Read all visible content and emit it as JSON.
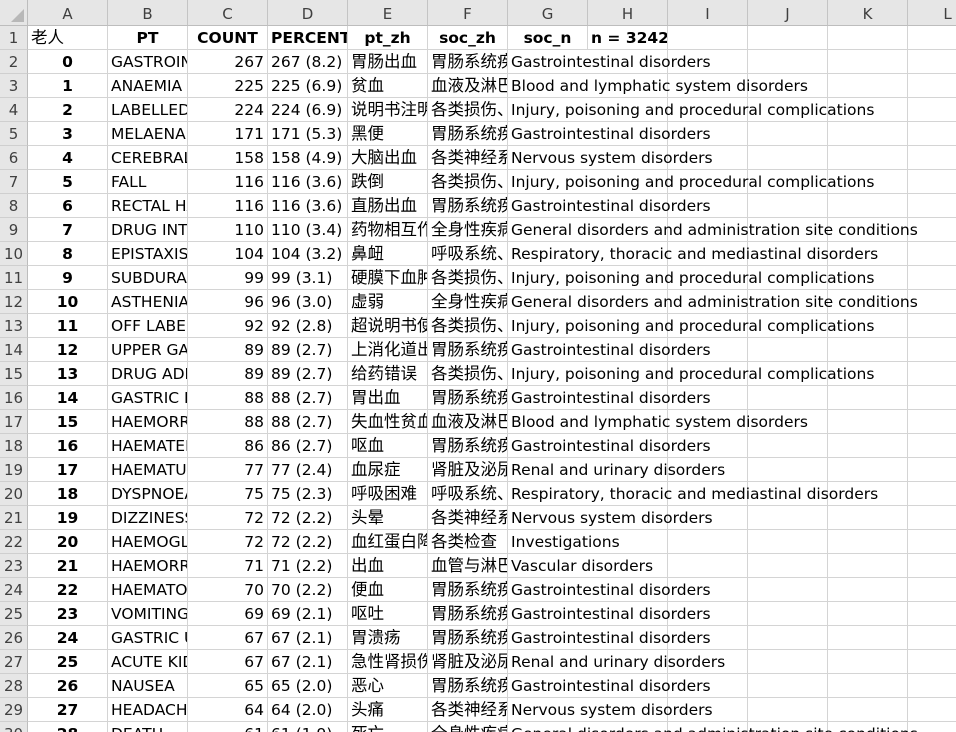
{
  "columns": [
    "A",
    "B",
    "C",
    "D",
    "E",
    "F",
    "G",
    "H",
    "I",
    "J",
    "K",
    "L"
  ],
  "header_row": {
    "row_number": "1",
    "A": "老人",
    "B": "PT",
    "C": "COUNT",
    "D": "PERCENTAGE",
    "E": "pt_zh",
    "F": "soc_zh",
    "G": "soc_n",
    "H": "n = 3242"
  },
  "rows": [
    {
      "n": "2",
      "a": "0",
      "b": "GASTROINTESTINAL HAEMORRHAGE",
      "c": "267",
      "d": "267 (8.2)",
      "e": "胃肠出血",
      "f": "胃肠系统疾病",
      "g": "Gastrointestinal disorders"
    },
    {
      "n": "3",
      "a": "1",
      "b": "ANAEMIA",
      "c": "225",
      "d": "225 (6.9)",
      "e": "贫血",
      "f": "血液及淋巴系统疾病",
      "g": "Blood and lymphatic system disorders"
    },
    {
      "n": "4",
      "a": "2",
      "b": "LABELLED DRUG-DRUG INTERACTION MEDICATION ERROR",
      "c": "224",
      "d": "224 (6.9)",
      "e": "说明书注明的药物相互作用用药错误",
      "f": "各类损伤、中毒及操作并发症",
      "g": "Injury, poisoning and procedural complications"
    },
    {
      "n": "5",
      "a": "3",
      "b": "MELAENA",
      "c": "171",
      "d": "171 (5.3)",
      "e": "黑便",
      "f": "胃肠系统疾病",
      "g": "Gastrointestinal disorders"
    },
    {
      "n": "6",
      "a": "4",
      "b": "CEREBRAL HAEMORRHAGE",
      "c": "158",
      "d": "158 (4.9)",
      "e": "大脑出血",
      "f": "各类神经系统疾病",
      "g": "Nervous system disorders"
    },
    {
      "n": "7",
      "a": "5",
      "b": "FALL",
      "c": "116",
      "d": "116 (3.6)",
      "e": "跌倒",
      "f": "各类损伤、中毒及操作并发症",
      "g": "Injury, poisoning and procedural complications"
    },
    {
      "n": "8",
      "a": "6",
      "b": "RECTAL HAEMORRHAGE",
      "c": "116",
      "d": "116 (3.6)",
      "e": "直肠出血",
      "f": "胃肠系统疾病",
      "g": "Gastrointestinal disorders"
    },
    {
      "n": "9",
      "a": "7",
      "b": "DRUG INTERACTION",
      "c": "110",
      "d": "110 (3.4)",
      "e": "药物相互作用",
      "f": "全身性疾病及给药部位各种反应",
      "g": "General disorders and administration site conditions"
    },
    {
      "n": "10",
      "a": "8",
      "b": "EPISTAXIS",
      "c": "104",
      "d": "104 (3.2)",
      "e": "鼻衄",
      "f": "呼吸系统、胸及纵隔疾病",
      "g": "Respiratory, thoracic and mediastinal disorders"
    },
    {
      "n": "11",
      "a": "9",
      "b": "SUBDURAL HAEMATOMA",
      "c": "99",
      "d": "99 (3.1)",
      "e": "硬膜下血肿",
      "f": "各类损伤、中毒及操作并发症",
      "g": "Injury, poisoning and procedural complications"
    },
    {
      "n": "12",
      "a": "10",
      "b": "ASTHENIA",
      "c": "96",
      "d": "96 (3.0)",
      "e": "虚弱",
      "f": "全身性疾病及给药部位各种反应",
      "g": "General disorders and administration site conditions"
    },
    {
      "n": "13",
      "a": "11",
      "b": "OFF LABEL USE",
      "c": "92",
      "d": "92 (2.8)",
      "e": "超说明书使用",
      "f": "各类损伤、中毒及操作并发症",
      "g": "Injury, poisoning and procedural complications"
    },
    {
      "n": "14",
      "a": "12",
      "b": "UPPER GASTROINTESTINAL HAEMORRHAGE",
      "c": "89",
      "d": "89 (2.7)",
      "e": "上消化道出血",
      "f": "胃肠系统疾病",
      "g": "Gastrointestinal disorders"
    },
    {
      "n": "15",
      "a": "13",
      "b": "DRUG ADMINISTRATION ERROR",
      "c": "89",
      "d": "89 (2.7)",
      "e": "给药错误",
      "f": "各类损伤、中毒及操作并发症",
      "g": "Injury, poisoning and procedural complications"
    },
    {
      "n": "16",
      "a": "14",
      "b": "GASTRIC HAEMORRHAGE",
      "c": "88",
      "d": "88 (2.7)",
      "e": "胃出血",
      "f": "胃肠系统疾病",
      "g": "Gastrointestinal disorders"
    },
    {
      "n": "17",
      "a": "15",
      "b": "HAEMORRHAGIC ANAEMIA",
      "c": "88",
      "d": "88 (2.7)",
      "e": "失血性贫血",
      "f": "血液及淋巴系统疾病",
      "g": "Blood and lymphatic system disorders"
    },
    {
      "n": "18",
      "a": "16",
      "b": "HAEMATEMESIS",
      "c": "86",
      "d": "86 (2.7)",
      "e": "呕血",
      "f": "胃肠系统疾病",
      "g": "Gastrointestinal disorders"
    },
    {
      "n": "19",
      "a": "17",
      "b": "HAEMATURIA",
      "c": "77",
      "d": "77 (2.4)",
      "e": "血尿症",
      "f": "肾脏及泌尿系统疾病",
      "g": "Renal and urinary disorders"
    },
    {
      "n": "20",
      "a": "18",
      "b": "DYSPNOEA",
      "c": "75",
      "d": "75 (2.3)",
      "e": "呼吸困难",
      "f": "呼吸系统、胸及纵隔疾病",
      "g": "Respiratory, thoracic and mediastinal disorders"
    },
    {
      "n": "21",
      "a": "19",
      "b": "DIZZINESS",
      "c": "72",
      "d": "72 (2.2)",
      "e": "头晕",
      "f": "各类神经系统疾病",
      "g": "Nervous system disorders"
    },
    {
      "n": "22",
      "a": "20",
      "b": "HAEMOGLOBIN DECREASED",
      "c": "72",
      "d": "72 (2.2)",
      "e": "血红蛋白降低",
      "f": "各类检查",
      "g": "Investigations"
    },
    {
      "n": "23",
      "a": "21",
      "b": "HAEMORRHAGE",
      "c": "71",
      "d": "71 (2.2)",
      "e": "出血",
      "f": "血管与淋巴管类疾病",
      "g": "Vascular disorders"
    },
    {
      "n": "24",
      "a": "22",
      "b": "HAEMATOCHEZIA",
      "c": "70",
      "d": "70 (2.2)",
      "e": "便血",
      "f": "胃肠系统疾病",
      "g": "Gastrointestinal disorders"
    },
    {
      "n": "25",
      "a": "23",
      "b": "VOMITING",
      "c": "69",
      "d": "69 (2.1)",
      "e": "呕吐",
      "f": "胃肠系统疾病",
      "g": "Gastrointestinal disorders"
    },
    {
      "n": "26",
      "a": "24",
      "b": "GASTRIC ULCER",
      "c": "67",
      "d": "67 (2.1)",
      "e": "胃溃疡",
      "f": "胃肠系统疾病",
      "g": "Gastrointestinal disorders"
    },
    {
      "n": "27",
      "a": "25",
      "b": "ACUTE KIDNEY INJURY",
      "c": "67",
      "d": "67 (2.1)",
      "e": "急性肾损伤",
      "f": "肾脏及泌尿系统疾病",
      "g": "Renal and urinary disorders"
    },
    {
      "n": "28",
      "a": "26",
      "b": "NAUSEA",
      "c": "65",
      "d": "65 (2.0)",
      "e": "恶心",
      "f": "胃肠系统疾病",
      "g": "Gastrointestinal disorders"
    },
    {
      "n": "29",
      "a": "27",
      "b": "HEADACHE",
      "c": "64",
      "d": "64 (2.0)",
      "e": "头痛",
      "f": "各类神经系统疾病",
      "g": "Nervous system disorders"
    },
    {
      "n": "30",
      "a": "28",
      "b": "DEATH",
      "c": "61",
      "d": "61 (1.9)",
      "e": "死亡",
      "f": "全身性疾病及给药部位各种反应",
      "g": "General disorders and administration site conditions"
    }
  ]
}
